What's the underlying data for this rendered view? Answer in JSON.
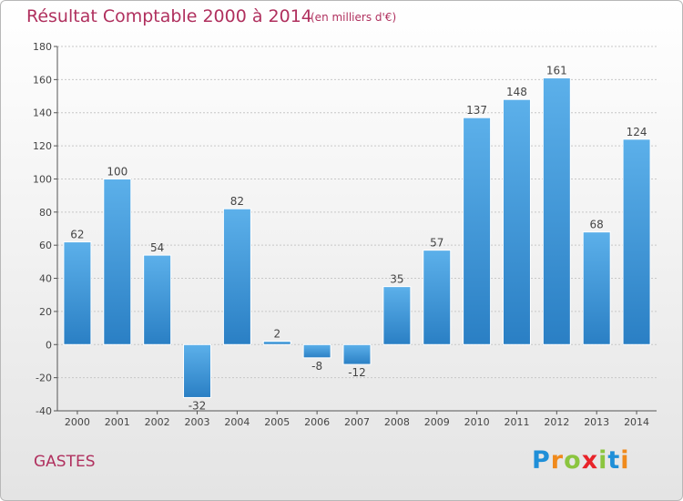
{
  "header": {
    "title": "Résultat Comptable 2000 à 2014",
    "subtitle": "(en milliers d'€)"
  },
  "commune": "GASTES",
  "brand": {
    "name": "Proxiti",
    "letters": [
      {
        "char": "P",
        "color": "#1f8fd8"
      },
      {
        "char": "r",
        "color": "#f08a1c"
      },
      {
        "char": "o",
        "color": "#8bc53f"
      },
      {
        "char": "x",
        "color": "#e8232a"
      },
      {
        "char": "i",
        "color": "#8bc53f"
      },
      {
        "char": "t",
        "color": "#1f8fd8"
      },
      {
        "char": "i",
        "color": "#f08a1c"
      }
    ]
  },
  "colors": {
    "title": "#b0305e",
    "bar_light": "#5cb0ea",
    "bar_dark": "#2a7fc4",
    "grid": "#c8c8c8",
    "axis": "#555555"
  },
  "chart_data": {
    "type": "bar",
    "categories": [
      "2000",
      "2001",
      "2002",
      "2003",
      "2004",
      "2005",
      "2006",
      "2007",
      "2008",
      "2009",
      "2010",
      "2011",
      "2012",
      "2013",
      "2014"
    ],
    "values": [
      62,
      100,
      54,
      -32,
      82,
      2,
      -8,
      -12,
      35,
      57,
      137,
      148,
      161,
      68,
      124
    ],
    "title": "Résultat Comptable 2000 à 2014",
    "subtitle": "(en milliers d'€)",
    "ylim": [
      -40,
      180
    ],
    "yticks": [
      -40,
      -20,
      0,
      20,
      40,
      60,
      80,
      100,
      120,
      140,
      160,
      180
    ],
    "grid": true,
    "data_labels": true
  }
}
